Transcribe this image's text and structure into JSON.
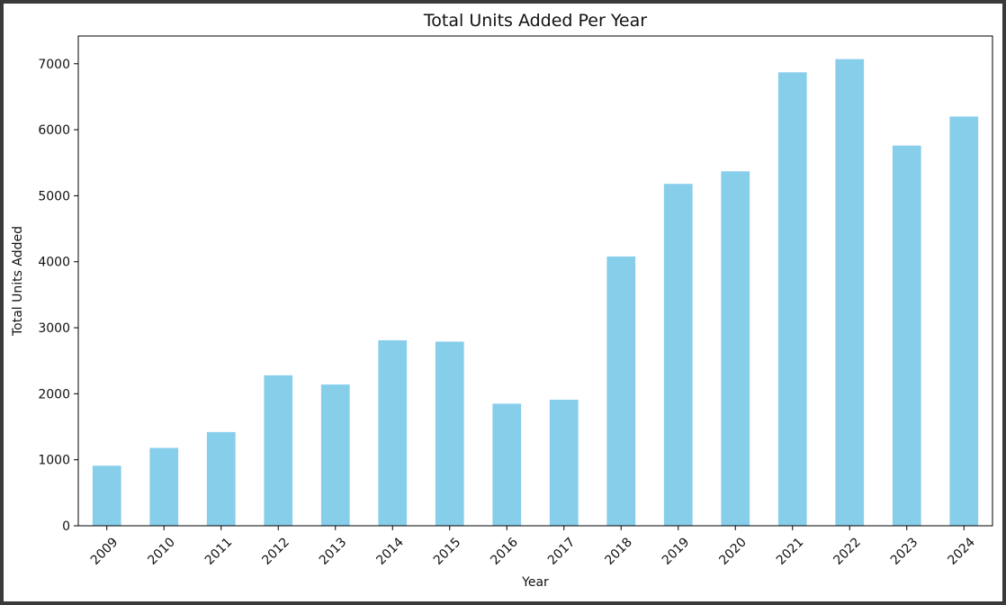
{
  "chart_data": {
    "type": "bar",
    "title": "Total Units Added Per Year",
    "xlabel": "Year",
    "ylabel": "Total Units Added",
    "categories": [
      "2009",
      "2010",
      "2011",
      "2012",
      "2013",
      "2014",
      "2015",
      "2016",
      "2017",
      "2018",
      "2019",
      "2020",
      "2021",
      "2022",
      "2023",
      "2024"
    ],
    "values": [
      910,
      1180,
      1420,
      2280,
      2140,
      2810,
      2790,
      1850,
      1910,
      4080,
      5180,
      5370,
      6870,
      7070,
      5760,
      6200
    ],
    "yticks": [
      0,
      1000,
      2000,
      3000,
      4000,
      5000,
      6000,
      7000
    ],
    "ylim": [
      0,
      7420
    ],
    "bar_color": "#87CEEB",
    "grid": false,
    "legend": false
  }
}
